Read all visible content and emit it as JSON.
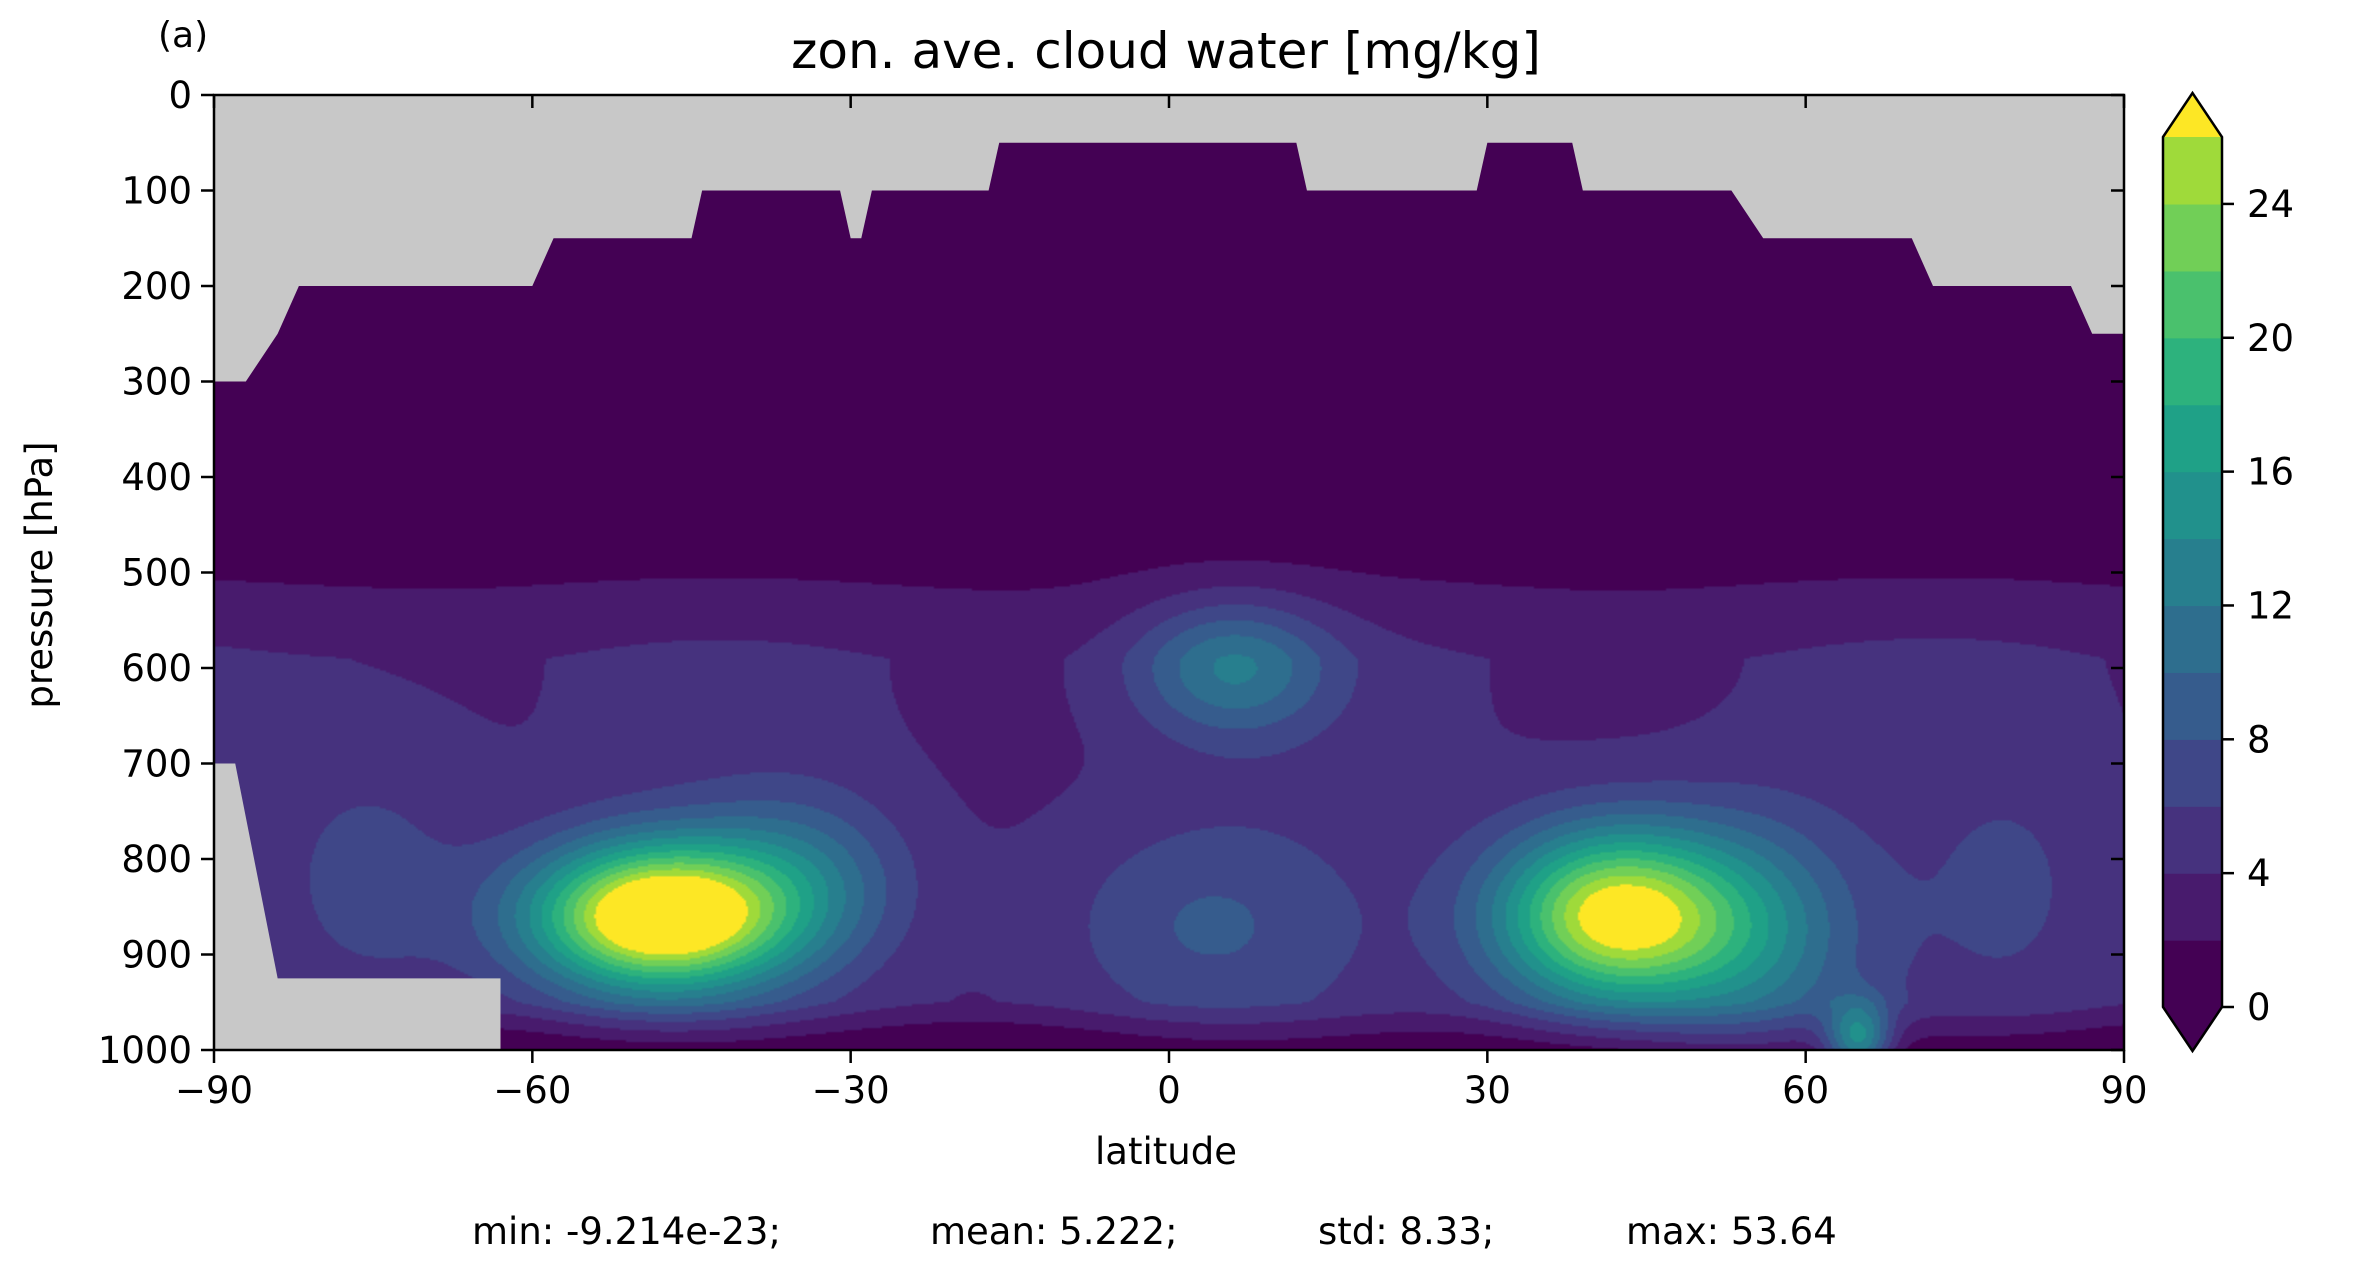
{
  "panel_label": "(a)",
  "stats": {
    "min": "min: -9.214e-23;",
    "mean": "mean: 5.222;",
    "std": "std: 8.33;",
    "max": "max: 53.64"
  },
  "colors": {
    "missing": "#c8c8c8",
    "levels": [
      "#440154",
      "#481b6d",
      "#46327e",
      "#3f4788",
      "#365c8d",
      "#2e6e8e",
      "#277f8e",
      "#21918c",
      "#1fa187",
      "#2db27d",
      "#4ac16d",
      "#71cf57",
      "#9fda3a",
      "#cfe11c",
      "#fde725"
    ],
    "under": "#440154",
    "over": "#fde725"
  },
  "chart_data": {
    "type": "heatmap",
    "title": "zon. ave. cloud water [mg/kg]",
    "xlabel": "latitude",
    "ylabel": "pressure [hPa]",
    "xlim": [
      -90,
      90
    ],
    "ylim": [
      1000,
      0
    ],
    "xticks": [
      -90,
      -60,
      -30,
      0,
      30,
      60,
      90
    ],
    "xtick_labels": [
      "−90",
      "−60",
      "−30",
      "0",
      "30",
      "60",
      "90"
    ],
    "yticks": [
      0,
      100,
      200,
      300,
      400,
      500,
      600,
      700,
      800,
      900,
      1000
    ],
    "ytick_labels": [
      "0",
      "100",
      "200",
      "300",
      "400",
      "500",
      "600",
      "700",
      "800",
      "900",
      "1000"
    ],
    "colorbar": {
      "levels": [
        0,
        2,
        4,
        6,
        8,
        10,
        12,
        14,
        16,
        18,
        20,
        22,
        24,
        26
      ],
      "tick_values": [
        0,
        4,
        8,
        12,
        16,
        20,
        24
      ],
      "tick_labels": [
        "0",
        "4",
        "8",
        "12",
        "16",
        "20",
        "24"
      ],
      "extend": "both"
    },
    "missing_top_boundary": [
      [
        -90,
        300
      ],
      [
        -87,
        300
      ],
      [
        -84,
        250
      ],
      [
        -82,
        200
      ],
      [
        -60,
        200
      ],
      [
        -58,
        150
      ],
      [
        -45,
        150
      ],
      [
        -44,
        100
      ],
      [
        -31,
        100
      ],
      [
        -30,
        150
      ],
      [
        -29,
        150
      ],
      [
        -28,
        100
      ],
      [
        -17,
        100
      ],
      [
        -16,
        50
      ],
      [
        12,
        50
      ],
      [
        13,
        100
      ],
      [
        29,
        100
      ],
      [
        30,
        50
      ],
      [
        38,
        50
      ],
      [
        39,
        100
      ],
      [
        53,
        100
      ],
      [
        56,
        150
      ],
      [
        70,
        150
      ],
      [
        72,
        200
      ],
      [
        85,
        200
      ],
      [
        87,
        250
      ],
      [
        90,
        250
      ]
    ],
    "missing_bottom_left": [
      [
        -90,
        700
      ],
      [
        -88,
        700
      ],
      [
        -84,
        925
      ],
      [
        -63,
        925
      ],
      [
        -63,
        1000
      ],
      [
        -90,
        1000
      ]
    ],
    "field_blobs": [
      {
        "lat": -48,
        "p": 860,
        "peak": 28,
        "lat_width": 12,
        "p_width": 75
      },
      {
        "lat": -35,
        "p": 820,
        "peak": 6,
        "lat_width": 10,
        "p_width": 90
      },
      {
        "lat": 42,
        "p": 860,
        "peak": 24,
        "lat_width": 11,
        "p_width": 90
      },
      {
        "lat": 55,
        "p": 880,
        "peak": 8,
        "lat_width": 10,
        "p_width": 120
      },
      {
        "lat": 65,
        "p": 990,
        "peak": 12,
        "lat_width": 3,
        "p_width": 40
      },
      {
        "lat": 6,
        "p": 600,
        "peak": 8,
        "lat_width": 9,
        "p_width": 70
      },
      {
        "lat": 3,
        "p": 870,
        "peak": 4,
        "lat_width": 14,
        "p_width": 110
      },
      {
        "lat": -75,
        "p": 820,
        "peak": 3,
        "lat_width": 10,
        "p_width": 150
      },
      {
        "lat": 80,
        "p": 830,
        "peak": 2,
        "lat_width": 10,
        "p_width": 150
      }
    ]
  }
}
